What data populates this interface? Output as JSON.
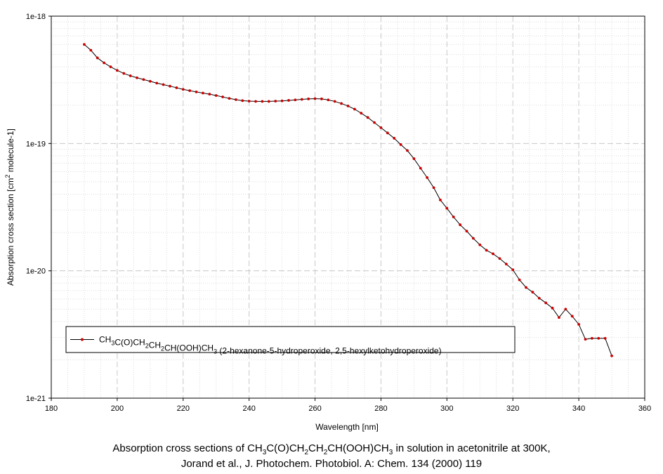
{
  "chart_data": {
    "type": "line",
    "xlabel": "Wavelength [nm]",
    "ylabel_parts": [
      "Absorption cross section [cm",
      "2",
      "  molecule-1]"
    ],
    "x_ticks": [
      "180",
      "200",
      "220",
      "240",
      "260",
      "280",
      "300",
      "320",
      "340",
      "360"
    ],
    "y_ticks": [
      "1e-21",
      "1e-20",
      "1e-19",
      "1e-18"
    ],
    "xlim": [
      180,
      360
    ],
    "ylim": [
      1e-21,
      1e-18
    ],
    "yscale": "log",
    "grid": true,
    "legend_placement": "lower-left",
    "series": [
      {
        "name": "CH3C(O)CH2CH2CH(OOH)CH3 (2-hexanone-5-hydroperoxide, 2,5-hexylketohydroperoxide)",
        "legend_parts": [
          {
            "t": "CH"
          },
          {
            "t": "3",
            "sub": true
          },
          {
            "t": "C(O)CH"
          },
          {
            "t": "2",
            "sub": true
          },
          {
            "t": "CH"
          },
          {
            "t": "2",
            "sub": true
          },
          {
            "t": "CH(OOH)CH"
          },
          {
            "t": "3",
            "sub": true
          },
          {
            "t": " (2-hexanone-5-hydroperoxide, 2,5-hexylketohydroperoxide)"
          }
        ],
        "line_color": "#000000",
        "marker_color": "#cc0000",
        "x": [
          190,
          192,
          194,
          196,
          198,
          200,
          202,
          204,
          206,
          208,
          210,
          212,
          214,
          216,
          218,
          220,
          222,
          224,
          226,
          228,
          230,
          232,
          234,
          236,
          238,
          240,
          242,
          244,
          246,
          248,
          250,
          252,
          254,
          256,
          258,
          260,
          262,
          264,
          266,
          268,
          270,
          272,
          274,
          276,
          278,
          280,
          282,
          284,
          286,
          288,
          290,
          292,
          294,
          296,
          298,
          300,
          302,
          304,
          306,
          308,
          310,
          312,
          314,
          316,
          318,
          320,
          322,
          324,
          326,
          328,
          330,
          332,
          334,
          336,
          338,
          340,
          342,
          344,
          346,
          348,
          350
        ],
        "y": [
          6e-19,
          5.4e-19,
          4.7e-19,
          4.3e-19,
          4e-19,
          3.75e-19,
          3.55e-19,
          3.4e-19,
          3.28e-19,
          3.18e-19,
          3.08e-19,
          2.98e-19,
          2.9e-19,
          2.82e-19,
          2.74e-19,
          2.66e-19,
          2.6e-19,
          2.54e-19,
          2.49e-19,
          2.44e-19,
          2.38e-19,
          2.32e-19,
          2.26e-19,
          2.21e-19,
          2.17e-19,
          2.15e-19,
          2.14e-19,
          2.14e-19,
          2.14e-19,
          2.15e-19,
          2.16e-19,
          2.18e-19,
          2.2e-19,
          2.22e-19,
          2.24e-19,
          2.25e-19,
          2.24e-19,
          2.2e-19,
          2.14e-19,
          2.06e-19,
          1.97e-19,
          1.86e-19,
          1.73e-19,
          1.6e-19,
          1.46e-19,
          1.33e-19,
          1.21e-19,
          1.1e-19,
          9.8e-20,
          8.8e-20,
          7.6e-20,
          6.4e-20,
          5.4e-20,
          4.5e-20,
          3.6e-20,
          3.1e-20,
          2.65e-20,
          2.3e-20,
          2.05e-20,
          1.8e-20,
          1.6e-20,
          1.45e-20,
          1.36e-20,
          1.25e-20,
          1.13e-20,
          1.02e-20,
          8.5e-21,
          7.4e-21,
          6.8e-21,
          6.1e-21,
          5.6e-21,
          5.1e-21,
          4.3e-21,
          5e-21,
          4.4e-21,
          3.8e-21,
          2.9e-21,
          2.95e-21,
          2.95e-21,
          2.95e-21,
          2.15e-21
        ]
      }
    ]
  },
  "caption": {
    "line1_parts": [
      {
        "t": "Absorption cross sections of CH"
      },
      {
        "t": "3",
        "sub": true
      },
      {
        "t": "C(O)CH"
      },
      {
        "t": "2",
        "sub": true
      },
      {
        "t": "CH"
      },
      {
        "t": "2",
        "sub": true
      },
      {
        "t": "CH(OOH)CH"
      },
      {
        "t": "3",
        "sub": true
      },
      {
        "t": " in solution in acetonitrile at 300K,"
      }
    ],
    "line2": "Jorand et al., J. Photochem. Photobiol. A: Chem. 134 (2000) 119"
  }
}
